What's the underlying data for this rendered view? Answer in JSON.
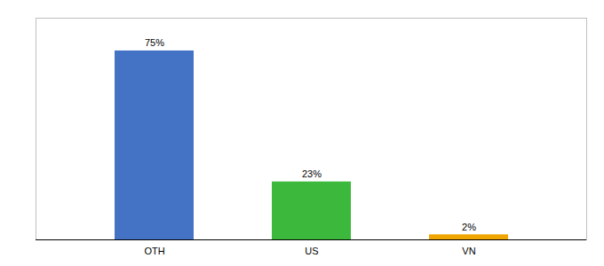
{
  "chart_data": {
    "type": "bar",
    "categories": [
      "OTH",
      "US",
      "VN"
    ],
    "values": [
      75,
      23,
      2
    ],
    "value_labels": [
      "75%",
      "23%",
      "2%"
    ],
    "colors": [
      "#4472c4",
      "#3cb83c",
      "#f0a500"
    ],
    "ylim": [
      0,
      88
    ],
    "grid": false,
    "data_labels": true,
    "tick_labels": "x"
  }
}
